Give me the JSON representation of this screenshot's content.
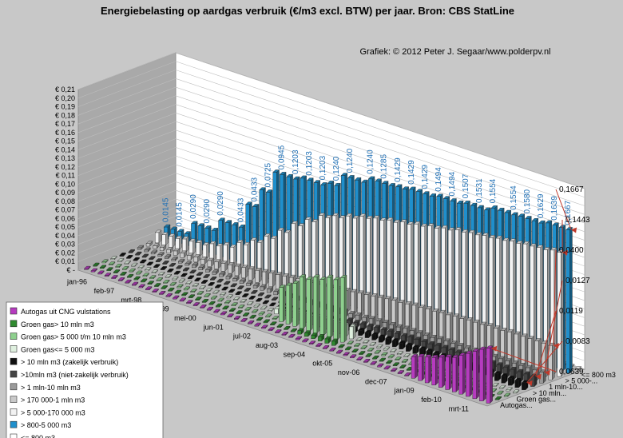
{
  "chart_data": {
    "type": "bar",
    "title": "Energiebelasting op aardgas verbruik (€/m3 excl. BTW) per jaar. Bron: CBS StatLine",
    "credit": "Grafiek: © 2012 Peter J. Segaar/www.polderpv.nl",
    "y_ticks": [
      "€ -",
      "€ 0,01",
      "€ 0,02",
      "€ 0,03",
      "€ 0,04",
      "€ 0,05",
      "€ 0,06",
      "€ 0,07",
      "€ 0,08",
      "€ 0,09",
      "€ 0,10",
      "€ 0,11",
      "€ 0,12",
      "€ 0,13",
      "€ 0,14",
      "€ 0,15",
      "€ 0,16",
      "€ 0,17",
      "€ 0,18",
      "€ 0,19",
      "€ 0,20",
      "€ 0,21"
    ],
    "ylim": [
      0,
      0.21
    ],
    "x_tick_labels": [
      "jan-96",
      "feb-97",
      "mrt-98",
      "apr-99",
      "mei-00",
      "jun-01",
      "jul-02",
      "aug-03",
      "sep-04",
      "okt-05",
      "nov-06",
      "dec-07",
      "jan-09",
      "feb-10",
      "mrt-11"
    ],
    "depth_tick_labels": [
      "Autogas...",
      "Groen gas...",
      "> 10 mln...",
      "1 mln-10...",
      "> 5 000-...",
      "<= 800 m3"
    ],
    "series": [
      {
        "name": "Autogas uit CNG vulstations",
        "color": "#b63bbf",
        "values": [
          0,
          0,
          0,
          0,
          0,
          0,
          0,
          0,
          0,
          0,
          0,
          0,
          0,
          0,
          0,
          0,
          0,
          0,
          0,
          0,
          0,
          0,
          0,
          0,
          0,
          0,
          0,
          0,
          0,
          0,
          0,
          0,
          0,
          0,
          0,
          0,
          0,
          0,
          0,
          0,
          0,
          0,
          0,
          0,
          0,
          0,
          0,
          0,
          0.025,
          0.028,
          0.03,
          0.032,
          0.035,
          0.038,
          0.04,
          0.045,
          0.05,
          0.055,
          0.06,
          0.0639
        ]
      },
      {
        "name": "Groen gas> 10 mln m3",
        "color": "#2f8a2f",
        "values": [
          0,
          0,
          0,
          0,
          0,
          0,
          0,
          0,
          0,
          0,
          0,
          0,
          0,
          0,
          0,
          0,
          0,
          0,
          0,
          0,
          0,
          0,
          0,
          0,
          0,
          0,
          0,
          0,
          0,
          0,
          0.004,
          0.004,
          0.004,
          0.005,
          0.005,
          0.005,
          0,
          0,
          0,
          0,
          0,
          0,
          0,
          0,
          0,
          0,
          0,
          0,
          0,
          0,
          0,
          0,
          0,
          0,
          0,
          0,
          0,
          0,
          0,
          0
        ]
      },
      {
        "name": "Groen gas> 5 000 t/m 10 mln m3",
        "color": "#8ed08e",
        "values": [
          0,
          0,
          0,
          0,
          0,
          0,
          0,
          0,
          0,
          0,
          0,
          0,
          0,
          0,
          0,
          0,
          0,
          0,
          0,
          0,
          0,
          0,
          0,
          0,
          0,
          0,
          0.04,
          0.045,
          0.05,
          0.06,
          0.06,
          0.065,
          0.065,
          0.07,
          0.07,
          0.075,
          0,
          0,
          0,
          0,
          0,
          0,
          0,
          0,
          0,
          0,
          0,
          0,
          0,
          0,
          0,
          0,
          0,
          0,
          0,
          0,
          0,
          0,
          0,
          0
        ]
      },
      {
        "name": "Groen gas<= 5 000 m3",
        "color": "#dff0df",
        "values": [
          0,
          0,
          0,
          0,
          0,
          0,
          0,
          0,
          0,
          0,
          0,
          0,
          0,
          0,
          0,
          0,
          0,
          0,
          0,
          0,
          0,
          0,
          0,
          0,
          0.006,
          0.006,
          0.008,
          0.008,
          0.01,
          0.01,
          0.012,
          0.012,
          0.013,
          0.013,
          0.013,
          0.014,
          0,
          0,
          0,
          0,
          0,
          0,
          0,
          0,
          0,
          0,
          0,
          0,
          0,
          0,
          0,
          0,
          0,
          0,
          0,
          0,
          0,
          0,
          0,
          0
        ]
      },
      {
        "name": "> 10 mln m3 (zakelijk verbruik)",
        "color": "#111111",
        "values": [
          0.001,
          0.001,
          0.001,
          0.001,
          0.001,
          0.001,
          0.001,
          0.001,
          0.001,
          0.001,
          0.001,
          0.001,
          0.001,
          0.001,
          0.001,
          0.001,
          0.001,
          0.001,
          0.001,
          0.001,
          0.001,
          0.001,
          0.001,
          0.001,
          0.001,
          0.001,
          0.001,
          0.001,
          0.001,
          0.001,
          0.004,
          0.004,
          0.005,
          0.005,
          0.005,
          0.006,
          0.006,
          0.006,
          0.006,
          0.007,
          0.007,
          0.007,
          0.007,
          0.007,
          0.008,
          0.008,
          0.008,
          0.008,
          0.008,
          0.008,
          0.008,
          0.008,
          0.008,
          0.008,
          0.0083,
          0.0083,
          0.0083,
          0.0083,
          0.0083,
          0.0083
        ]
      },
      {
        "name": ">10mln m3 (niet-zakelijk verbruik)",
        "color": "#444444",
        "values": [
          0,
          0,
          0,
          0,
          0,
          0,
          0,
          0,
          0,
          0,
          0,
          0,
          0,
          0,
          0,
          0,
          0,
          0,
          0,
          0,
          0,
          0,
          0,
          0,
          0,
          0,
          0,
          0,
          0,
          0,
          0.005,
          0.005,
          0.006,
          0.006,
          0.007,
          0.007,
          0.008,
          0.008,
          0.009,
          0.009,
          0.009,
          0.01,
          0.01,
          0.01,
          0.01,
          0.011,
          0.011,
          0.011,
          0.011,
          0.0115,
          0.0115,
          0.0115,
          0.0117,
          0.0117,
          0.0119,
          0.0119,
          0.0119,
          0.0119,
          0.0119,
          0.0119
        ]
      },
      {
        "name": "> 1 mln-10 mln m3",
        "color": "#9a9a9a",
        "values": [
          0.002,
          0.002,
          0.002,
          0.002,
          0.002,
          0.002,
          0.002,
          0.002,
          0.003,
          0.003,
          0.003,
          0.003,
          0.003,
          0.003,
          0.003,
          0.003,
          0.003,
          0.003,
          0.004,
          0.004,
          0.004,
          0.004,
          0.004,
          0.004,
          0.005,
          0.005,
          0.005,
          0.005,
          0.006,
          0.006,
          0.007,
          0.007,
          0.008,
          0.008,
          0.009,
          0.009,
          0.01,
          0.01,
          0.01,
          0.011,
          0.011,
          0.011,
          0.011,
          0.011,
          0.012,
          0.012,
          0.012,
          0.012,
          0.012,
          0.012,
          0.0125,
          0.0125,
          0.0125,
          0.0125,
          0.0127,
          0.0127,
          0.0127,
          0.0127,
          0.0127,
          0.0127
        ]
      },
      {
        "name": "> 170 000-1 mln m3",
        "color": "#c9c9c9",
        "values": [
          0.003,
          0.003,
          0.004,
          0.004,
          0.005,
          0.005,
          0.005,
          0.006,
          0.006,
          0.007,
          0.008,
          0.009,
          0.01,
          0.011,
          0.012,
          0.013,
          0.014,
          0.015,
          0.016,
          0.017,
          0.018,
          0.019,
          0.02,
          0.02,
          0.021,
          0.022,
          0.022,
          0.023,
          0.024,
          0.025,
          0.026,
          0.027,
          0.028,
          0.029,
          0.03,
          0.031,
          0.032,
          0.032,
          0.033,
          0.034,
          0.034,
          0.035,
          0.035,
          0.036,
          0.036,
          0.037,
          0.037,
          0.038,
          0.038,
          0.038,
          0.039,
          0.039,
          0.039,
          0.04,
          0.04,
          0.04,
          0.04,
          0.04,
          0.04,
          0.04
        ]
      },
      {
        "name": "> 5 000-170 000 m3",
        "color": "#f2f2f2",
        "values": [
          0.012,
          0.012,
          0.013,
          0.013,
          0.015,
          0.015,
          0.016,
          0.016,
          0.02,
          0.02,
          0.024,
          0.024,
          0.032,
          0.032,
          0.04,
          0.04,
          0.05,
          0.05,
          0.062,
          0.062,
          0.075,
          0.075,
          0.085,
          0.085,
          0.095,
          0.095,
          0.1,
          0.1,
          0.105,
          0.105,
          0.11,
          0.11,
          0.113,
          0.113,
          0.116,
          0.116,
          0.119,
          0.119,
          0.122,
          0.122,
          0.125,
          0.125,
          0.128,
          0.128,
          0.131,
          0.131,
          0.133,
          0.133,
          0.135,
          0.135,
          0.137,
          0.137,
          0.139,
          0.139,
          0.141,
          0.141,
          0.142,
          0.142,
          0.1443,
          0.1443
        ]
      },
      {
        "name": "> 800-5 000 m3",
        "color": "#1f8fcc",
        "values": [
          0.0145,
          0.0145,
          0.0145,
          0.0145,
          0.029,
          0.029,
          0.029,
          0.029,
          0.0433,
          0.0433,
          0.0433,
          0.0433,
          0.0725,
          0.0725,
          0.0945,
          0.0945,
          0.1203,
          0.1203,
          0.1203,
          0.1203,
          0.124,
          0.124,
          0.124,
          0.124,
          0.1285,
          0.1285,
          0.1429,
          0.1429,
          0.1429,
          0.1429,
          0.1494,
          0.1494,
          0.1494,
          0.1494,
          0.1507,
          0.1507,
          0.1531,
          0.1531,
          0.1531,
          0.1531,
          0.1554,
          0.1554,
          0.1554,
          0.1554,
          0.158,
          0.158,
          0.158,
          0.158,
          0.1629,
          0.1629,
          0.1629,
          0.1629,
          0.1639,
          0.1639,
          0.1639,
          0.1639,
          0.1667,
          0.1667,
          0.1667,
          0.1667
        ]
      },
      {
        "name": "<= 800 m3",
        "color": "#ffffff",
        "values": [
          0,
          0,
          0,
          0,
          0,
          0,
          0,
          0,
          0,
          0,
          0,
          0,
          0,
          0,
          0,
          0,
          0,
          0,
          0,
          0,
          0,
          0,
          0,
          0,
          0,
          0,
          0,
          0,
          0,
          0,
          0,
          0,
          0,
          0,
          0,
          0,
          0,
          0,
          0,
          0,
          0,
          0,
          0,
          0,
          0,
          0,
          0,
          0,
          0,
          0,
          0,
          0,
          0,
          0,
          0,
          0,
          0,
          0,
          0,
          0
        ]
      }
    ],
    "value_labels": [
      "0,0145",
      "0,0145",
      "0,0290",
      "0,0290",
      "0,0290",
      "0,0433",
      "0,0433",
      "0,0725",
      "0,0945",
      "0,1203",
      "0,1203",
      "0,1203",
      "0,1240",
      "0,1240",
      "0,1240",
      "0,1285",
      "0,1429",
      "0,1429",
      "0,1429",
      "0,1494",
      "0,1494",
      "0,1507",
      "0,1531",
      "0,1554",
      "0,1554",
      "0,1580",
      "0,1629",
      "0,1639",
      "0,1667"
    ],
    "end_annotations": [
      {
        "series": "> 800-5 000 m3",
        "label": "0,1667"
      },
      {
        "series": "> 5 000-170 000 m3",
        "label": "0,1443"
      },
      {
        "series": "> 170 000-1 mln m3",
        "label": "0,0400"
      },
      {
        "series": "> 1 mln-10 mln m3",
        "label": "0,0127"
      },
      {
        "series": ">10mln m3 (niet-zakelijk verbruik)",
        "label": "0,0119"
      },
      {
        "series": "> 10 mln m3 (zakelijk verbruik)",
        "label": "0,0083"
      },
      {
        "series": "Autogas uit CNG vulstations",
        "label": "0,0639"
      }
    ],
    "legend_position": "bottom-left",
    "grid": true
  }
}
